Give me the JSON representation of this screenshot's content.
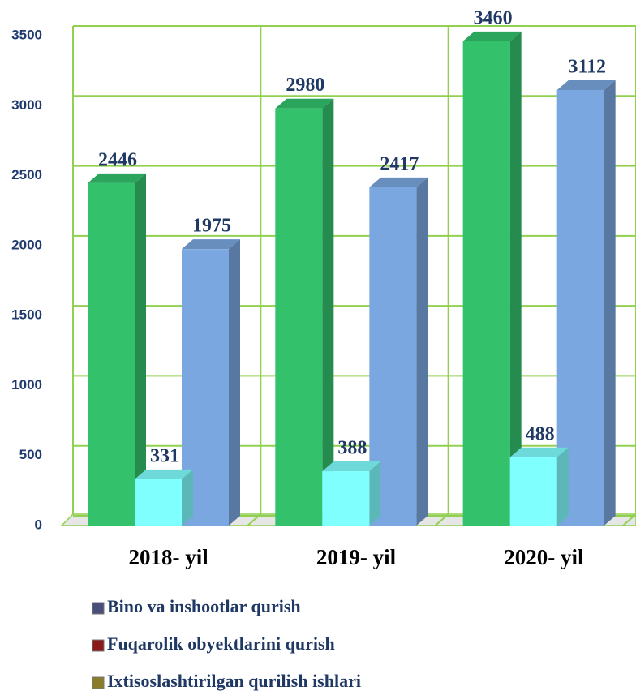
{
  "chart_data": {
    "type": "bar3d",
    "categories": [
      "2018- yil",
      "2019- yil",
      "2020- yil"
    ],
    "series": [
      {
        "name": "Bino va inshootlar qurish",
        "color": "#33c16c",
        "legend_color": "#4a4f7a",
        "values": [
          2446,
          2980,
          3460
        ]
      },
      {
        "name": "Fuqarolik obyektlarini qurish",
        "color": "#80ffff",
        "legend_color": "#8b1a1a",
        "values": [
          331,
          388,
          488
        ]
      },
      {
        "name": "Ixtisoslashtirilgan qurilish ishlari",
        "color": "#7aa7e0",
        "legend_color": "#8a7d2a",
        "values": [
          1975,
          2417,
          3112
        ]
      }
    ],
    "ylim": [
      0,
      3500
    ],
    "yticks": [
      0,
      500,
      1000,
      1500,
      2000,
      2500,
      3000,
      3500
    ],
    "grid": true,
    "grid_color": "#92d050",
    "legend": "bottom-left"
  }
}
